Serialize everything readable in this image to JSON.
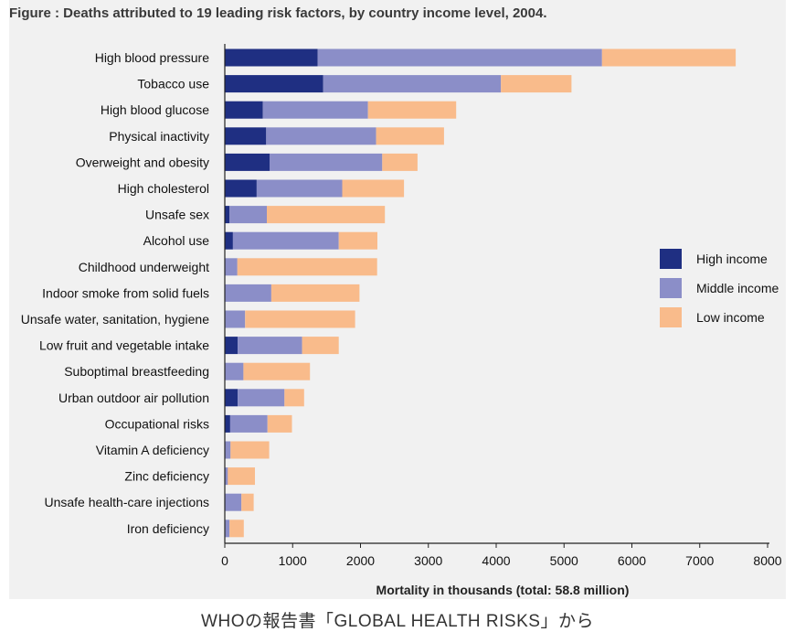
{
  "figure_title": "Figure  : Deaths attributed to 19 leading risk factors, by country income level, 2004.",
  "caption": "WHOの報告書「GLOBAL HEALTH RISKS」から",
  "colors": {
    "high": "#1f2f82",
    "middle": "#8b8ec8",
    "low": "#f9bb8b",
    "axis": "#222222",
    "panel": "#f1f1f1"
  },
  "chart_data": {
    "type": "bar",
    "orientation": "horizontal",
    "stacked": true,
    "title": "Deaths attributed to 19 leading risk factors, by country income level, 2004.",
    "xlabel": "Mortality in thousands (total: 58.8 million)",
    "ylabel": "",
    "xlim": [
      0,
      8000
    ],
    "xticks": [
      0,
      1000,
      2000,
      3000,
      4000,
      5000,
      6000,
      7000,
      8000
    ],
    "grid": false,
    "legend_position": "right",
    "categories": [
      "High blood pressure",
      "Tobacco use",
      "High blood glucose",
      "Physical inactivity",
      "Overweight and obesity",
      "High cholesterol",
      "Unsafe sex",
      "Alcohol use",
      "Childhood underweight",
      "Indoor smoke from solid fuels",
      "Unsafe water, sanitation, hygiene",
      "Low fruit and vegetable intake",
      "Suboptimal breastfeeding",
      "Urban outdoor air pollution",
      "Occupational risks",
      "Vitamin A deficiency",
      "Zinc deficiency",
      "Unsafe health-care injections",
      "Iron deficiency"
    ],
    "series": [
      {
        "name": "High income",
        "key": "high",
        "values": [
          1370,
          1450,
          560,
          610,
          660,
          470,
          70,
          120,
          5,
          5,
          10,
          190,
          5,
          190,
          80,
          5,
          5,
          5,
          10
        ]
      },
      {
        "name": "Middle income",
        "key": "middle",
        "values": [
          4190,
          2620,
          1550,
          1620,
          1660,
          1260,
          550,
          1560,
          180,
          680,
          290,
          950,
          270,
          690,
          550,
          80,
          40,
          240,
          60
        ]
      },
      {
        "name": "Low income",
        "key": "low",
        "values": [
          1970,
          1040,
          1300,
          1000,
          520,
          910,
          1740,
          570,
          2060,
          1300,
          1620,
          540,
          980,
          290,
          360,
          570,
          400,
          180,
          210
        ]
      }
    ]
  }
}
